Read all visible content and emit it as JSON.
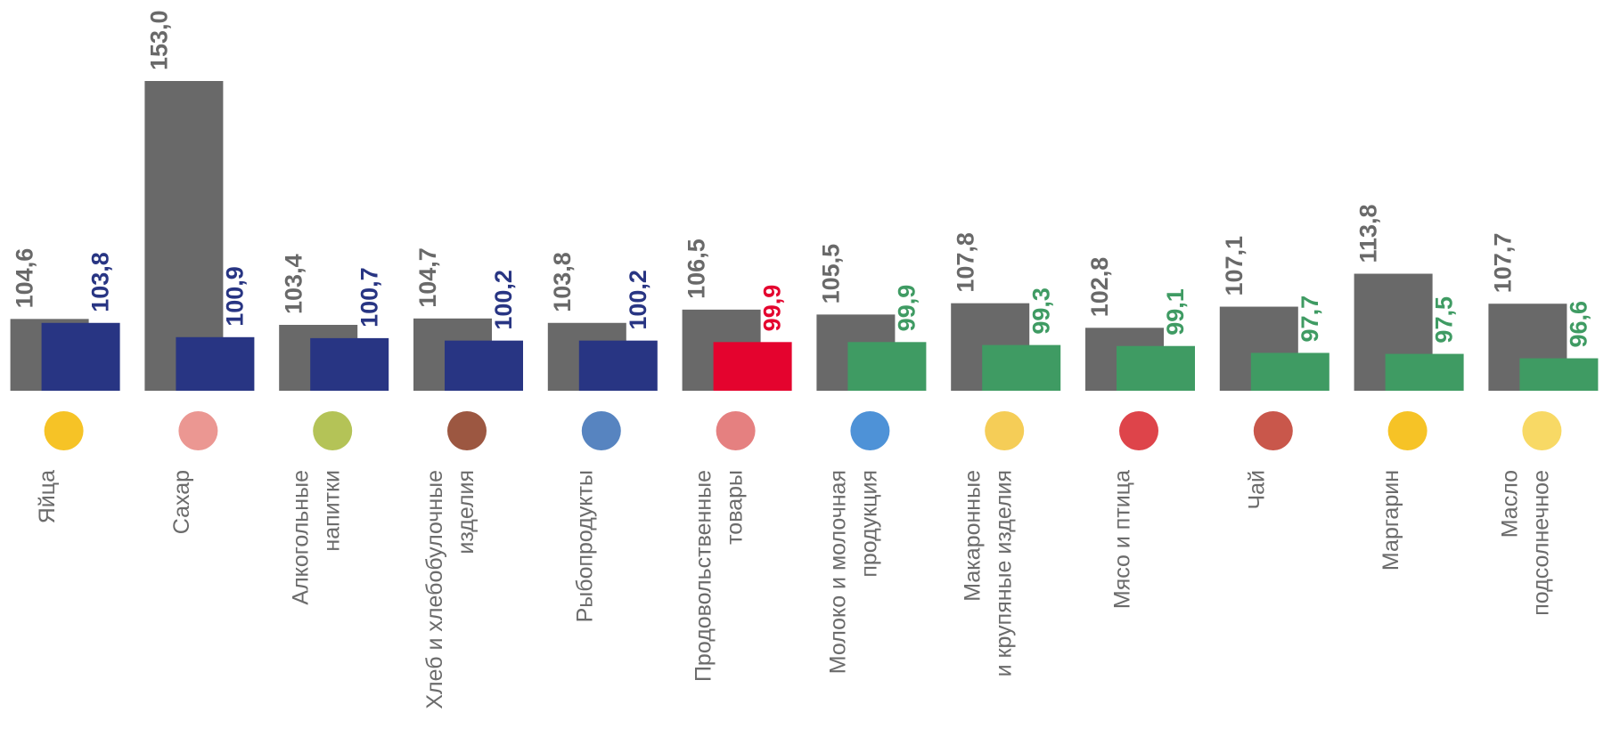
{
  "chart_data": {
    "type": "bar",
    "categories": [
      [
        "Яйца"
      ],
      [
        "Сахар"
      ],
      [
        "Алкогольные",
        "напитки"
      ],
      [
        "Хлеб и хлебобулочные",
        "изделия"
      ],
      [
        "Рыбопродукты"
      ],
      [
        "Продовольственные",
        "товары"
      ],
      [
        "Молоко и молочная",
        "продукция"
      ],
      [
        "Макаронные",
        "и крупяные изделия"
      ],
      [
        "Мясо и птица"
      ],
      [
        "Чай"
      ],
      [
        "Маргарин"
      ],
      [
        "Масло",
        "подсолнечное"
      ]
    ],
    "series": [
      {
        "color": "#696969",
        "values": [
          104.6,
          153.0,
          103.4,
          104.7,
          103.8,
          106.5,
          105.5,
          107.8,
          102.8,
          107.1,
          113.8,
          107.7
        ],
        "value_labels": [
          "104,6",
          "153,0",
          "103,4",
          "104,7",
          "103,8",
          "106,5",
          "105,5",
          "107,8",
          "102,8",
          "107,1",
          "113,8",
          "107,7"
        ]
      },
      {
        "colors": [
          "#283583",
          "#283583",
          "#283583",
          "#283583",
          "#283583",
          "#e4032e",
          "#3f9b63",
          "#3f9b63",
          "#3f9b63",
          "#3f9b63",
          "#3f9b63",
          "#3f9b63"
        ],
        "values": [
          103.8,
          100.9,
          100.7,
          100.2,
          100.2,
          99.9,
          99.9,
          99.3,
          99.1,
          97.7,
          97.5,
          96.6
        ],
        "value_labels": [
          "103,8",
          "100,9",
          "100,7",
          "100,2",
          "100,2",
          "99,9",
          "99,9",
          "99,3",
          "99,1",
          "97,7",
          "97,5",
          "96,6"
        ]
      }
    ],
    "ylim": [
      90,
      153
    ]
  }
}
